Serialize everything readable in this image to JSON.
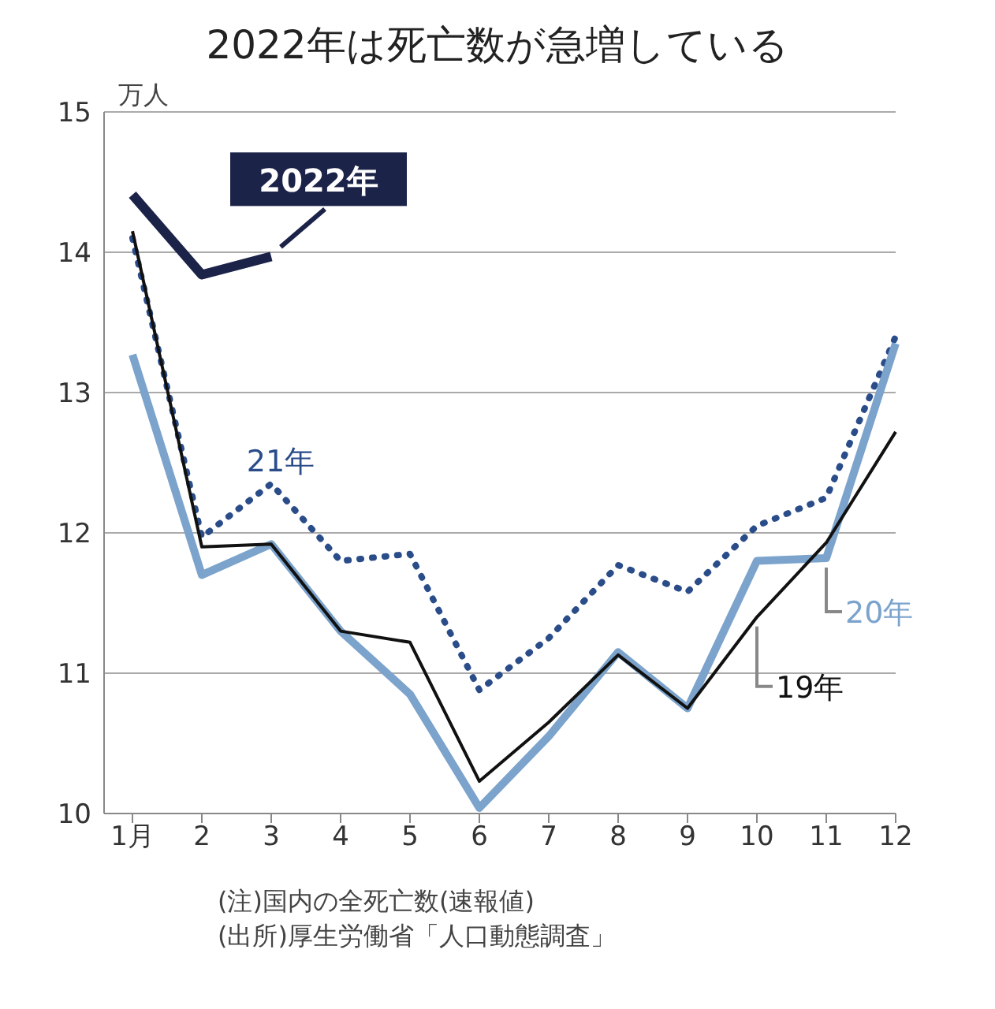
{
  "chart_data": {
    "type": "line",
    "title": "2022年は死亡数が急増している",
    "ylabel": "万人",
    "categories": [
      "1月",
      "2",
      "3",
      "4",
      "5",
      "6",
      "7",
      "8",
      "9",
      "10",
      "11",
      "12"
    ],
    "series": [
      {
        "name": "2022年",
        "color": "#1c2348",
        "line_style": "solid",
        "values": [
          14.41,
          13.84,
          13.97,
          null,
          null,
          null,
          null,
          null,
          null,
          null,
          null,
          null
        ]
      },
      {
        "name": "21年",
        "color": "#2a4d8a",
        "line_style": "dotted",
        "values": [
          14.1,
          11.97,
          12.35,
          11.8,
          11.85,
          10.88,
          11.25,
          11.77,
          11.58,
          12.05,
          12.25,
          13.4
        ]
      },
      {
        "name": "20年",
        "color": "#7ba3cc",
        "line_style": "solid",
        "values": [
          13.27,
          11.7,
          11.92,
          11.3,
          10.85,
          10.04,
          10.55,
          11.15,
          10.75,
          11.8,
          11.82,
          13.35
        ]
      },
      {
        "name": "19年",
        "color": "#111111",
        "line_style": "solid",
        "values": [
          14.15,
          11.9,
          11.92,
          11.3,
          11.22,
          10.23,
          10.65,
          11.13,
          10.75,
          11.4,
          11.93,
          12.72
        ]
      }
    ],
    "ylim": [
      10,
      15
    ],
    "yticks": [
      10,
      11,
      12,
      13,
      14,
      15
    ],
    "grid": "y",
    "legend": false,
    "marker": "none",
    "annotations": [
      "(注)国内の全死亡数(速報値)",
      "(出所)厚生労働省「人口動態調査」"
    ]
  }
}
